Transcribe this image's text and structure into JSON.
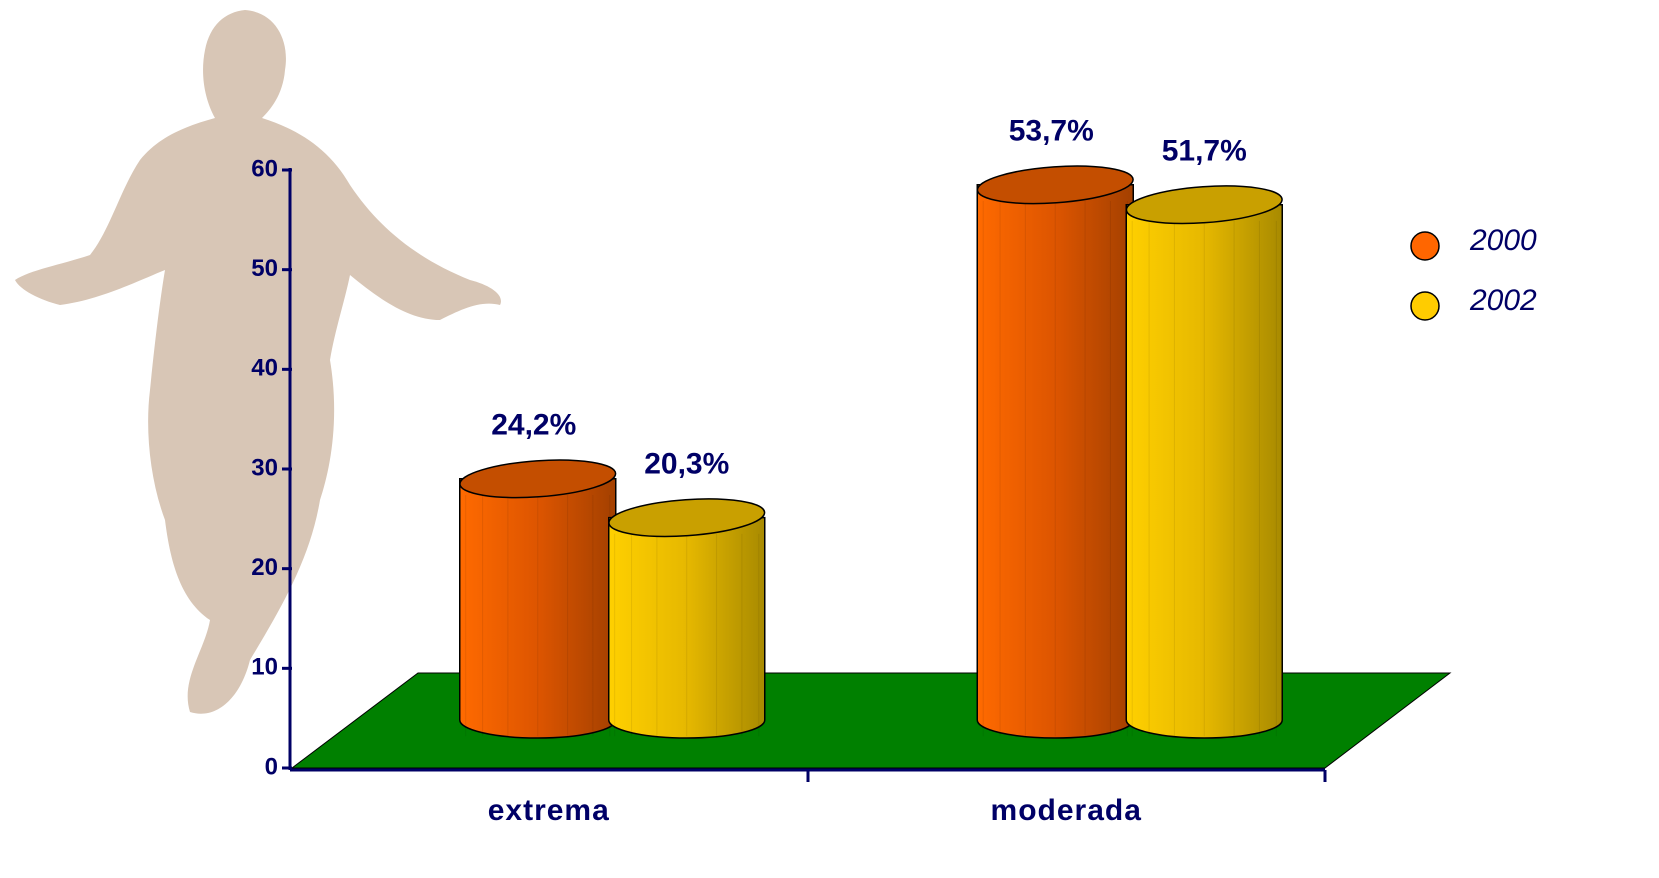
{
  "chart_data": {
    "type": "bar",
    "categories": [
      "extrema",
      "moderada"
    ],
    "series": [
      {
        "name": "2000",
        "color": "#ff6600",
        "values": [
          24.2,
          53.7
        ],
        "value_labels": [
          "24,2%",
          "53,7%"
        ]
      },
      {
        "name": "2002",
        "color": "#ffcc00",
        "values": [
          20.3,
          51.7
        ],
        "value_labels": [
          "20,3%",
          "51,7%"
        ]
      }
    ],
    "ylim": [
      0,
      60
    ],
    "yticks": [
      0,
      10,
      20,
      30,
      40,
      50,
      60
    ],
    "legend": "right"
  }
}
